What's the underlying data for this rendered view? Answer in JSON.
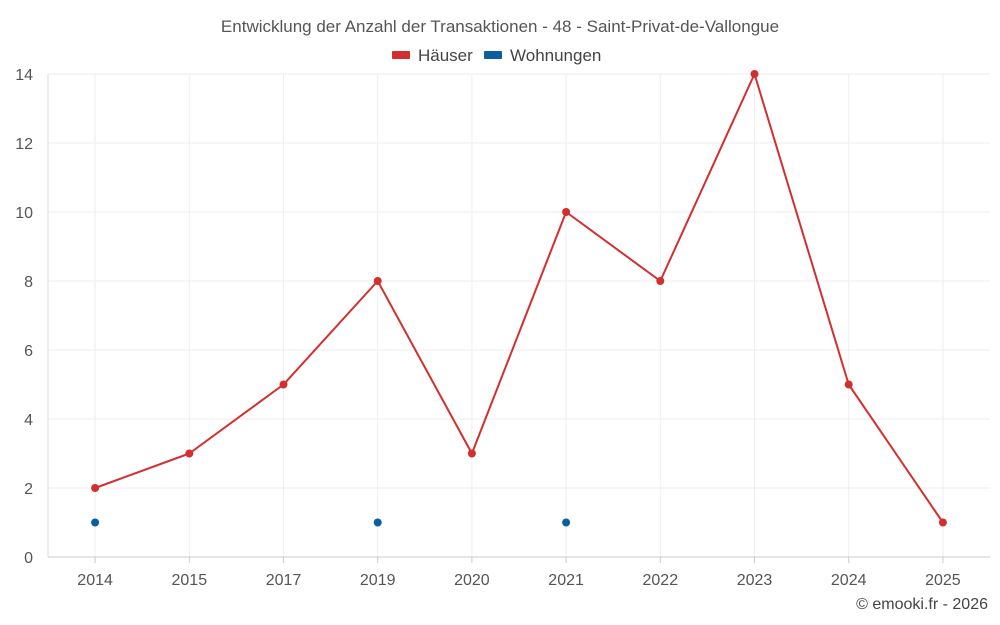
{
  "chart_data": {
    "type": "line",
    "title": "Entwicklung der Anzahl der Transaktionen - 48 - Saint-Privat-de-Vallongue",
    "categories": [
      "2014",
      "2015",
      "2017",
      "2019",
      "2020",
      "2021",
      "2022",
      "2023",
      "2024",
      "2025"
    ],
    "series": [
      {
        "name": "Häuser",
        "color": "#d32f2f",
        "mode": "line+markers",
        "values": [
          2,
          3,
          5,
          8,
          3,
          10,
          8,
          14,
          5,
          1
        ]
      },
      {
        "name": "Wohnungen",
        "color": "#0a5f9e",
        "mode": "markers",
        "values": [
          1,
          null,
          null,
          1,
          null,
          1,
          null,
          null,
          null,
          null
        ]
      }
    ],
    "y_ticks": [
      0,
      2,
      4,
      6,
      8,
      10,
      12,
      14
    ],
    "ylim": [
      0,
      14
    ],
    "grid": true,
    "legend_position": "top-center",
    "xlabel": "",
    "ylabel": ""
  },
  "footer": {
    "copyright": "© emooki.fr - 2026"
  }
}
